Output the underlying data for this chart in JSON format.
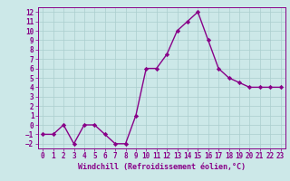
{
  "x": [
    0,
    1,
    2,
    3,
    4,
    5,
    6,
    7,
    8,
    9,
    10,
    11,
    12,
    13,
    14,
    15,
    16,
    17,
    18,
    19,
    20,
    21,
    22,
    23
  ],
  "y": [
    -1,
    -1,
    0,
    -2,
    0,
    0,
    -1,
    -2,
    -2,
    1,
    6,
    6,
    7.5,
    10,
    11,
    12,
    9,
    6,
    5,
    4.5,
    4,
    4,
    4,
    4
  ],
  "line_color": "#880088",
  "marker": "D",
  "marker_size": 2.2,
  "bg_color": "#cce8e8",
  "grid_color": "#aacece",
  "xlabel": "Windchill (Refroidissement éolien,°C)",
  "xlabel_color": "#880088",
  "xlabel_fontsize": 6.0,
  "tick_color": "#880088",
  "tick_fontsize": 5.5,
  "ylim": [
    -2.5,
    12.5
  ],
  "xlim": [
    -0.5,
    23.5
  ],
  "yticks": [
    -2,
    -1,
    0,
    1,
    2,
    3,
    4,
    5,
    6,
    7,
    8,
    9,
    10,
    11,
    12
  ],
  "xticks": [
    0,
    1,
    2,
    3,
    4,
    5,
    6,
    7,
    8,
    9,
    10,
    11,
    12,
    13,
    14,
    15,
    16,
    17,
    18,
    19,
    20,
    21,
    22,
    23
  ],
  "linewidth": 1.0,
  "spine_color": "#880088"
}
